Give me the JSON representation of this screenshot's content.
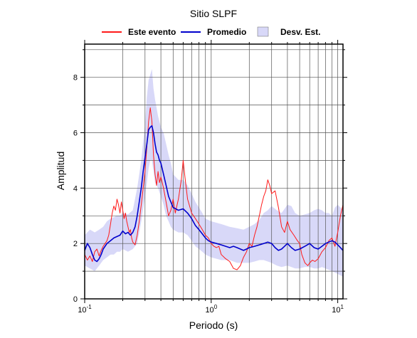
{
  "chart_data": {
    "type": "line",
    "title": "Sitio SLPF",
    "xlabel": "Periodo (s)",
    "ylabel": "Amplitud",
    "x_scale": "log",
    "xlim": [
      0.1,
      11
    ],
    "ylim": [
      0,
      9.2
    ],
    "grid": true,
    "legend_position": "top",
    "x_ticks": [
      {
        "value": 0.1,
        "base": "10",
        "exp": "-1"
      },
      {
        "value": 1,
        "base": "10",
        "exp": "0"
      },
      {
        "value": 10,
        "base": "10",
        "exp": "1"
      }
    ],
    "y_ticks": [
      0,
      2,
      4,
      6,
      8
    ],
    "legend": [
      {
        "label": "Este evento",
        "kind": "line",
        "color": "#ff1a1a"
      },
      {
        "label": "Promedio",
        "kind": "line",
        "color": "#0000cc"
      },
      {
        "label": "Desv. Est.",
        "kind": "band",
        "color": "#d8d8f8"
      }
    ],
    "series": [
      {
        "name": "Este evento",
        "color": "#ff1a1a",
        "points": [
          [
            0.1,
            1.6
          ],
          [
            0.105,
            1.4
          ],
          [
            0.11,
            1.55
          ],
          [
            0.115,
            1.35
          ],
          [
            0.12,
            1.7
          ],
          [
            0.125,
            1.8
          ],
          [
            0.13,
            1.55
          ],
          [
            0.135,
            1.75
          ],
          [
            0.14,
            1.9
          ],
          [
            0.145,
            2.0
          ],
          [
            0.15,
            2.1
          ],
          [
            0.155,
            2.3
          ],
          [
            0.16,
            2.7
          ],
          [
            0.165,
            3.1
          ],
          [
            0.17,
            3.35
          ],
          [
            0.175,
            3.2
          ],
          [
            0.18,
            3.6
          ],
          [
            0.185,
            3.4
          ],
          [
            0.19,
            3.1
          ],
          [
            0.195,
            3.5
          ],
          [
            0.2,
            3.2
          ],
          [
            0.205,
            2.9
          ],
          [
            0.21,
            3.1
          ],
          [
            0.215,
            2.8
          ],
          [
            0.22,
            2.6
          ],
          [
            0.225,
            2.4
          ],
          [
            0.23,
            2.5
          ],
          [
            0.235,
            2.2
          ],
          [
            0.24,
            2.05
          ],
          [
            0.25,
            1.95
          ],
          [
            0.26,
            2.3
          ],
          [
            0.27,
            2.8
          ],
          [
            0.28,
            3.4
          ],
          [
            0.29,
            4.0
          ],
          [
            0.3,
            4.6
          ],
          [
            0.31,
            5.5
          ],
          [
            0.32,
            6.4
          ],
          [
            0.33,
            6.9
          ],
          [
            0.34,
            6.4
          ],
          [
            0.35,
            5.2
          ],
          [
            0.36,
            4.5
          ],
          [
            0.37,
            4.1
          ],
          [
            0.38,
            4.6
          ],
          [
            0.39,
            4.2
          ],
          [
            0.4,
            4.4
          ],
          [
            0.42,
            4.0
          ],
          [
            0.44,
            3.5
          ],
          [
            0.46,
            3.0
          ],
          [
            0.48,
            3.2
          ],
          [
            0.5,
            3.6
          ],
          [
            0.52,
            3.1
          ],
          [
            0.55,
            3.6
          ],
          [
            0.58,
            4.3
          ],
          [
            0.6,
            5.0
          ],
          [
            0.62,
            4.4
          ],
          [
            0.65,
            3.6
          ],
          [
            0.7,
            3.1
          ],
          [
            0.75,
            2.9
          ],
          [
            0.8,
            2.7
          ],
          [
            0.85,
            2.5
          ],
          [
            0.9,
            2.3
          ],
          [
            0.95,
            2.2
          ],
          [
            1.0,
            2.0
          ],
          [
            1.05,
            1.9
          ],
          [
            1.1,
            1.85
          ],
          [
            1.15,
            1.9
          ],
          [
            1.2,
            1.6
          ],
          [
            1.3,
            1.45
          ],
          [
            1.4,
            1.35
          ],
          [
            1.5,
            1.1
          ],
          [
            1.6,
            1.05
          ],
          [
            1.7,
            1.2
          ],
          [
            1.8,
            1.5
          ],
          [
            1.9,
            1.7
          ],
          [
            2.0,
            2.0
          ],
          [
            2.1,
            1.9
          ],
          [
            2.2,
            2.3
          ],
          [
            2.3,
            2.6
          ],
          [
            2.4,
            3.0
          ],
          [
            2.5,
            3.4
          ],
          [
            2.6,
            3.7
          ],
          [
            2.7,
            3.9
          ],
          [
            2.8,
            4.3
          ],
          [
            2.9,
            4.1
          ],
          [
            3.0,
            3.8
          ],
          [
            3.2,
            3.9
          ],
          [
            3.4,
            3.3
          ],
          [
            3.6,
            2.6
          ],
          [
            3.8,
            2.4
          ],
          [
            4.0,
            2.8
          ],
          [
            4.2,
            2.5
          ],
          [
            4.5,
            2.3
          ],
          [
            4.8,
            2.1
          ],
          [
            5.0,
            2.0
          ],
          [
            5.2,
            1.6
          ],
          [
            5.5,
            1.3
          ],
          [
            5.8,
            1.2
          ],
          [
            6.0,
            1.3
          ],
          [
            6.3,
            1.4
          ],
          [
            6.6,
            1.35
          ],
          [
            7.0,
            1.45
          ],
          [
            7.5,
            1.7
          ],
          [
            8.0,
            1.85
          ],
          [
            8.5,
            2.1
          ],
          [
            9.0,
            2.2
          ],
          [
            9.5,
            1.9
          ],
          [
            10.0,
            2.4
          ],
          [
            10.5,
            3.0
          ],
          [
            11.0,
            3.4
          ]
        ]
      },
      {
        "name": "Promedio",
        "color": "#0000cc",
        "points": [
          [
            0.1,
            1.75
          ],
          [
            0.105,
            2.0
          ],
          [
            0.11,
            1.85
          ],
          [
            0.115,
            1.6
          ],
          [
            0.12,
            1.4
          ],
          [
            0.125,
            1.35
          ],
          [
            0.13,
            1.45
          ],
          [
            0.135,
            1.6
          ],
          [
            0.14,
            1.8
          ],
          [
            0.15,
            2.0
          ],
          [
            0.16,
            2.1
          ],
          [
            0.17,
            2.2
          ],
          [
            0.18,
            2.25
          ],
          [
            0.19,
            2.3
          ],
          [
            0.2,
            2.45
          ],
          [
            0.21,
            2.35
          ],
          [
            0.22,
            2.4
          ],
          [
            0.23,
            2.3
          ],
          [
            0.24,
            2.4
          ],
          [
            0.25,
            2.6
          ],
          [
            0.26,
            3.0
          ],
          [
            0.27,
            3.5
          ],
          [
            0.28,
            4.0
          ],
          [
            0.29,
            4.6
          ],
          [
            0.3,
            5.1
          ],
          [
            0.31,
            5.6
          ],
          [
            0.32,
            6.1
          ],
          [
            0.33,
            6.2
          ],
          [
            0.34,
            6.25
          ],
          [
            0.35,
            6.0
          ],
          [
            0.36,
            5.6
          ],
          [
            0.37,
            5.3
          ],
          [
            0.38,
            5.2
          ],
          [
            0.39,
            5.0
          ],
          [
            0.4,
            4.9
          ],
          [
            0.42,
            4.5
          ],
          [
            0.44,
            4.1
          ],
          [
            0.46,
            3.7
          ],
          [
            0.48,
            3.5
          ],
          [
            0.5,
            3.3
          ],
          [
            0.55,
            3.2
          ],
          [
            0.6,
            3.25
          ],
          [
            0.65,
            3.1
          ],
          [
            0.7,
            2.9
          ],
          [
            0.75,
            2.65
          ],
          [
            0.8,
            2.5
          ],
          [
            0.85,
            2.35
          ],
          [
            0.9,
            2.2
          ],
          [
            0.95,
            2.1
          ],
          [
            1.0,
            2.05
          ],
          [
            1.1,
            2.0
          ],
          [
            1.2,
            1.95
          ],
          [
            1.3,
            1.9
          ],
          [
            1.4,
            1.85
          ],
          [
            1.5,
            1.9
          ],
          [
            1.6,
            1.85
          ],
          [
            1.7,
            1.8
          ],
          [
            1.8,
            1.75
          ],
          [
            1.9,
            1.8
          ],
          [
            2.0,
            1.85
          ],
          [
            2.2,
            1.9
          ],
          [
            2.4,
            1.95
          ],
          [
            2.6,
            2.0
          ],
          [
            2.8,
            2.05
          ],
          [
            3.0,
            2.0
          ],
          [
            3.2,
            1.85
          ],
          [
            3.4,
            1.75
          ],
          [
            3.6,
            1.8
          ],
          [
            3.8,
            1.9
          ],
          [
            4.0,
            2.0
          ],
          [
            4.3,
            1.85
          ],
          [
            4.6,
            1.75
          ],
          [
            5.0,
            1.8
          ],
          [
            5.5,
            1.9
          ],
          [
            6.0,
            2.0
          ],
          [
            6.5,
            1.85
          ],
          [
            7.0,
            1.8
          ],
          [
            7.5,
            1.9
          ],
          [
            8.0,
            2.0
          ],
          [
            8.5,
            2.05
          ],
          [
            9.0,
            2.1
          ],
          [
            9.5,
            2.05
          ],
          [
            10.0,
            1.95
          ],
          [
            10.5,
            1.85
          ],
          [
            11.0,
            1.75
          ]
        ]
      }
    ],
    "band": {
      "name": "Desv. Est.",
      "color": "#d8d8f8",
      "points": [
        [
          0.1,
          1.2,
          2.3
        ],
        [
          0.11,
          1.1,
          2.5
        ],
        [
          0.12,
          1.0,
          2.4
        ],
        [
          0.13,
          1.2,
          2.5
        ],
        [
          0.14,
          1.4,
          2.6
        ],
        [
          0.15,
          1.5,
          2.8
        ],
        [
          0.16,
          1.6,
          2.9
        ],
        [
          0.17,
          1.6,
          2.95
        ],
        [
          0.18,
          1.7,
          3.0
        ],
        [
          0.19,
          1.7,
          3.0
        ],
        [
          0.2,
          1.8,
          3.1
        ],
        [
          0.22,
          1.7,
          3.05
        ],
        [
          0.24,
          1.8,
          3.2
        ],
        [
          0.26,
          2.0,
          4.0
        ],
        [
          0.28,
          2.8,
          5.0
        ],
        [
          0.3,
          3.7,
          6.3
        ],
        [
          0.31,
          4.2,
          7.3
        ],
        [
          0.32,
          4.7,
          7.9
        ],
        [
          0.33,
          5.0,
          8.1
        ],
        [
          0.34,
          5.0,
          8.3
        ],
        [
          0.35,
          4.6,
          7.6
        ],
        [
          0.36,
          4.2,
          7.2
        ],
        [
          0.38,
          4.0,
          6.6
        ],
        [
          0.4,
          3.7,
          6.2
        ],
        [
          0.42,
          3.4,
          6.0
        ],
        [
          0.44,
          3.0,
          5.6
        ],
        [
          0.46,
          2.8,
          5.2
        ],
        [
          0.48,
          2.6,
          4.9
        ],
        [
          0.5,
          2.5,
          4.5
        ],
        [
          0.55,
          2.4,
          4.3
        ],
        [
          0.6,
          2.4,
          4.3
        ],
        [
          0.65,
          2.3,
          4.1
        ],
        [
          0.7,
          2.1,
          3.8
        ],
        [
          0.75,
          1.9,
          3.5
        ],
        [
          0.8,
          1.8,
          3.3
        ],
        [
          0.85,
          1.7,
          3.1
        ],
        [
          0.9,
          1.6,
          2.9
        ],
        [
          1.0,
          1.5,
          2.8
        ],
        [
          1.2,
          1.4,
          2.7
        ],
        [
          1.4,
          1.4,
          2.6
        ],
        [
          1.6,
          1.3,
          2.55
        ],
        [
          1.8,
          1.3,
          2.5
        ],
        [
          2.0,
          1.3,
          2.6
        ],
        [
          2.2,
          1.35,
          2.7
        ],
        [
          2.4,
          1.4,
          2.85
        ],
        [
          2.6,
          1.4,
          3.1
        ],
        [
          2.8,
          1.35,
          3.2
        ],
        [
          3.0,
          1.3,
          3.35
        ],
        [
          3.3,
          1.2,
          3.2
        ],
        [
          3.6,
          1.15,
          3.1
        ],
        [
          4.0,
          1.2,
          3.4
        ],
        [
          4.3,
          1.15,
          3.35
        ],
        [
          4.6,
          1.1,
          3.1
        ],
        [
          5.0,
          1.1,
          3.0
        ],
        [
          5.5,
          1.15,
          3.05
        ],
        [
          6.0,
          1.15,
          3.1
        ],
        [
          6.5,
          1.1,
          3.2
        ],
        [
          7.0,
          1.1,
          3.25
        ],
        [
          7.5,
          1.15,
          3.2
        ],
        [
          8.0,
          1.1,
          3.1
        ],
        [
          8.5,
          1.05,
          3.1
        ],
        [
          9.0,
          1.0,
          3.0
        ],
        [
          9.5,
          0.95,
          3.3
        ],
        [
          10.0,
          0.9,
          3.4
        ],
        [
          10.5,
          0.85,
          3.3
        ],
        [
          11.0,
          0.8,
          3.2
        ]
      ]
    }
  }
}
